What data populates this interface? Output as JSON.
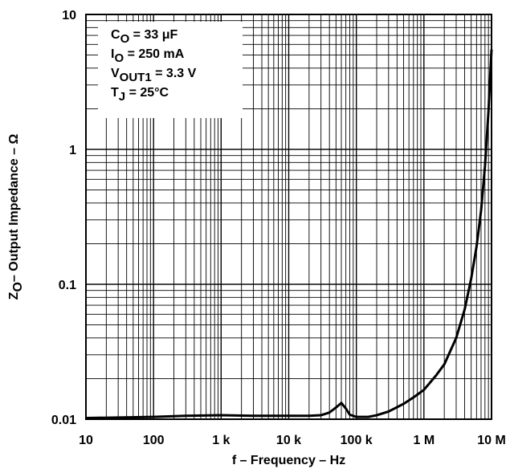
{
  "chart_data": {
    "type": "line",
    "title": "",
    "xlabel": "f – Frequency – Hz",
    "ylabel_main": "Z",
    "ylabel_sub": "O",
    "ylabel_rest": "– Output Impedance – Ω",
    "x_scale": "log",
    "y_scale": "log",
    "xlim": [
      10,
      10000000
    ],
    "ylim": [
      0.01,
      10
    ],
    "grid": true,
    "x_ticks": [
      10,
      100,
      1000,
      10000,
      100000,
      1000000,
      10000000
    ],
    "x_tick_labels": [
      "10",
      "100",
      "1 k",
      "10 k",
      "100 k",
      "1 M",
      "10 M"
    ],
    "y_ticks": [
      0.01,
      0.1,
      1,
      10
    ],
    "y_tick_labels": [
      "0.01",
      "0.1",
      "1",
      "10"
    ],
    "legend_placement": "top-left",
    "conditions": [
      {
        "main": "C",
        "sub": "O",
        "rest": " = 33 μF"
      },
      {
        "main": "I",
        "sub": "O",
        "rest": " = 250 mA"
      },
      {
        "main": "V",
        "sub": "OUT1",
        "rest": " = 3.3 V"
      },
      {
        "main": "T",
        "sub": "J",
        "rest": " = 25°C"
      }
    ],
    "series": [
      {
        "x": [
          10,
          30,
          100,
          300,
          1000,
          3000,
          10000,
          20000,
          30000,
          40000,
          50000,
          60000,
          70000,
          80000,
          100000,
          150000,
          200000,
          300000,
          500000,
          700000,
          1000000,
          1500000,
          2000000,
          3000000,
          4000000,
          5000000,
          6000000,
          7000000,
          8000000,
          9000000,
          10000000
        ],
        "y": [
          0.0102,
          0.0103,
          0.0104,
          0.0106,
          0.0107,
          0.0106,
          0.0106,
          0.0106,
          0.0107,
          0.0112,
          0.0122,
          0.0132,
          0.012,
          0.0108,
          0.0104,
          0.0104,
          0.0107,
          0.0114,
          0.013,
          0.0145,
          0.0165,
          0.021,
          0.0255,
          0.04,
          0.065,
          0.11,
          0.19,
          0.35,
          0.75,
          1.9,
          5.5
        ]
      }
    ]
  }
}
